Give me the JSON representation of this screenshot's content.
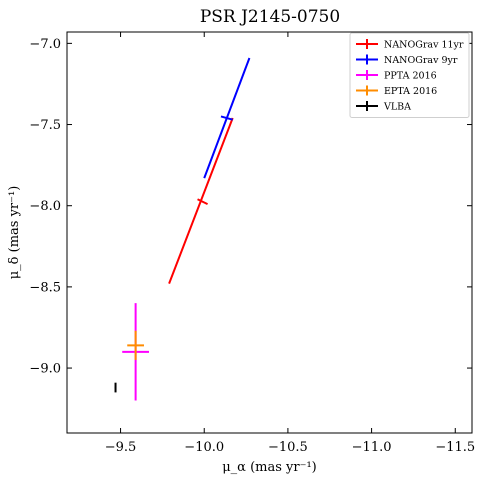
{
  "chart_data": {
    "type": "scatter",
    "title": "PSR J2145-0750",
    "xlabel": "μ_α (mas yr⁻¹)",
    "ylabel": "μ_δ (mas yr⁻¹)",
    "xlim": [
      -9.18,
      -11.6
    ],
    "ylim": [
      -9.4,
      -6.93
    ],
    "x_inverted": true,
    "xticks": [
      -9.5,
      -10.0,
      -10.5,
      -11.0,
      -11.5
    ],
    "xtick_labels": [
      "−9.5",
      "−10.0",
      "−10.5",
      "−11.0",
      "−11.5"
    ],
    "yticks": [
      -9.0,
      -8.5,
      -8.0,
      -7.5,
      -7.0
    ],
    "ytick_labels": [
      "−9.0",
      "−8.5",
      "−8.0",
      "−7.5",
      "−7.0"
    ],
    "grid": false,
    "legend_position": "top-right",
    "series": [
      {
        "name": "NANOGrav 11yr",
        "color": "#ff0000",
        "x": -9.98,
        "y": -7.97,
        "xerr_line": [
          [
            -9.96,
            -7.96
          ],
          [
            -10.02,
            -7.99
          ]
        ],
        "yerr_line": [
          [
            -9.79,
            -8.48
          ],
          [
            -10.17,
            -7.46
          ]
        ]
      },
      {
        "name": "NANOGrav 9yr",
        "color": "#0000ff",
        "x": -10.13,
        "y": -7.46,
        "xerr_line": [
          [
            -10.1,
            -7.45
          ],
          [
            -10.17,
            -7.47
          ]
        ],
        "yerr_line": [
          [
            -10.0,
            -7.83
          ],
          [
            -10.27,
            -7.09
          ]
        ]
      },
      {
        "name": "PPTA 2016",
        "color": "#ff00ff",
        "x": -9.59,
        "y": -8.9,
        "xerr": 0.08,
        "yerr": 0.3
      },
      {
        "name": "EPTA 2016",
        "color": "#ff8c00",
        "x": -9.59,
        "y": -8.86,
        "xerr": 0.05,
        "yerr": 0.09
      },
      {
        "name": "VLBA",
        "color": "#000000",
        "x": -9.47,
        "y": -9.12,
        "xerr": 0.005,
        "yerr": 0.03
      }
    ]
  }
}
